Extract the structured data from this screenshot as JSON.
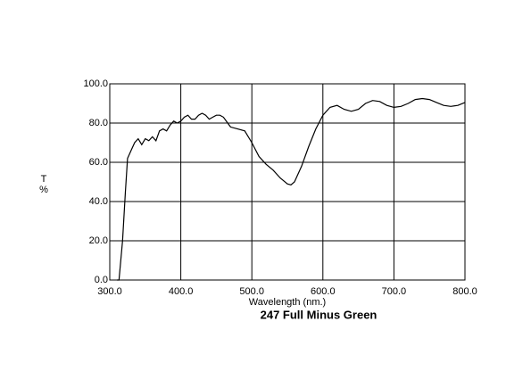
{
  "chart_data": {
    "type": "line",
    "title": "247 Full Minus Green",
    "xlabel": "Wavelength (nm.)",
    "ylabel": [
      "T",
      "%"
    ],
    "x": [
      310,
      313,
      318,
      322,
      325,
      330,
      335,
      340,
      345,
      350,
      355,
      360,
      365,
      370,
      375,
      380,
      385,
      390,
      395,
      400,
      405,
      410,
      415,
      420,
      425,
      430,
      435,
      440,
      445,
      450,
      455,
      460,
      470,
      480,
      490,
      500,
      510,
      520,
      530,
      540,
      550,
      555,
      560,
      570,
      580,
      590,
      600,
      610,
      620,
      630,
      640,
      650,
      660,
      670,
      680,
      690,
      700,
      710,
      720,
      730,
      740,
      750,
      760,
      770,
      780,
      790,
      800
    ],
    "series": [
      {
        "name": "T",
        "color": "#000000",
        "values": [
          0,
          0,
          20,
          45,
          62,
          66,
          70,
          72,
          69,
          72,
          71,
          73,
          71,
          76,
          77,
          76,
          79,
          81,
          80,
          81,
          83,
          84,
          82,
          82,
          84,
          85,
          84,
          82,
          83,
          84,
          84,
          83,
          78,
          77,
          76,
          70,
          63,
          59,
          56,
          52,
          49,
          48.5,
          50,
          58,
          68,
          77,
          84,
          88,
          89,
          87,
          86,
          87,
          90,
          91.5,
          91,
          89,
          88,
          88.5,
          90,
          92,
          92.5,
          92,
          90.5,
          89,
          88.5,
          89,
          90.5
        ]
      }
    ],
    "xlim": [
      300,
      800
    ],
    "xticks": [
      {
        "value": 300,
        "label": "300.0"
      },
      {
        "value": 400,
        "label": "400.0"
      },
      {
        "value": 500,
        "label": "500.0"
      },
      {
        "value": 600,
        "label": "600.0"
      },
      {
        "value": 700,
        "label": "700.0"
      },
      {
        "value": 800,
        "label": "800.0"
      }
    ],
    "ylim": [
      0,
      100
    ],
    "yticks": [
      {
        "value": 0,
        "label": "0.0"
      },
      {
        "value": 20,
        "label": "20.0"
      },
      {
        "value": 40,
        "label": "40.0"
      },
      {
        "value": 60,
        "label": "60.0"
      },
      {
        "value": 80,
        "label": "80.0"
      },
      {
        "value": 100,
        "label": "100.0"
      }
    ],
    "grid": true
  }
}
